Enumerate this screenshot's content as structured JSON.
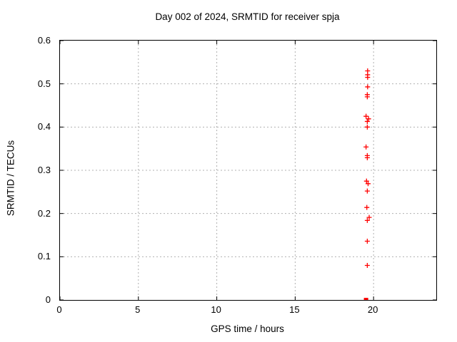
{
  "chart_data": {
    "type": "scatter",
    "title": "Day 002 of 2024, SRMTID for receiver spja",
    "xlabel": "GPS time / hours",
    "ylabel": "SRMTID / TECUs",
    "xlim": [
      0,
      24
    ],
    "ylim": [
      0,
      0.6
    ],
    "xticks": [
      0,
      5,
      10,
      15,
      20
    ],
    "xtick_labels": [
      "0",
      "5",
      "10",
      "15",
      "20"
    ],
    "yticks": [
      0,
      0.1,
      0.2,
      0.3,
      0.4,
      0.5,
      0.6
    ],
    "ytick_labels": [
      "0",
      "0.1",
      "0.2",
      "0.3",
      "0.4",
      "0.5",
      "0.6"
    ],
    "grid": true,
    "legend": "none",
    "colors": {
      "marker": "#ff0000",
      "grid": "#b0b0b0",
      "border": "#000000"
    },
    "series": [
      {
        "name": "srmtid-values",
        "marker": "plus",
        "color": "#ff0000",
        "points": [
          [
            19.62,
            0.53
          ],
          [
            19.62,
            0.521
          ],
          [
            19.62,
            0.515
          ],
          [
            19.62,
            0.493
          ],
          [
            19.6,
            0.475
          ],
          [
            19.6,
            0.47
          ],
          [
            19.52,
            0.425
          ],
          [
            19.68,
            0.419
          ],
          [
            19.6,
            0.413
          ],
          [
            19.6,
            0.4
          ],
          [
            19.52,
            0.354
          ],
          [
            19.6,
            0.334
          ],
          [
            19.6,
            0.329
          ],
          [
            19.55,
            0.275
          ],
          [
            19.65,
            0.269
          ],
          [
            19.6,
            0.252
          ],
          [
            19.57,
            0.214
          ],
          [
            19.72,
            0.191
          ],
          [
            19.6,
            0.184
          ],
          [
            19.6,
            0.136
          ],
          [
            19.6,
            0.08
          ]
        ]
      },
      {
        "name": "zero-value",
        "marker": "square",
        "color": "#ff0000",
        "points": [
          [
            19.52,
            0.0
          ]
        ]
      }
    ]
  }
}
